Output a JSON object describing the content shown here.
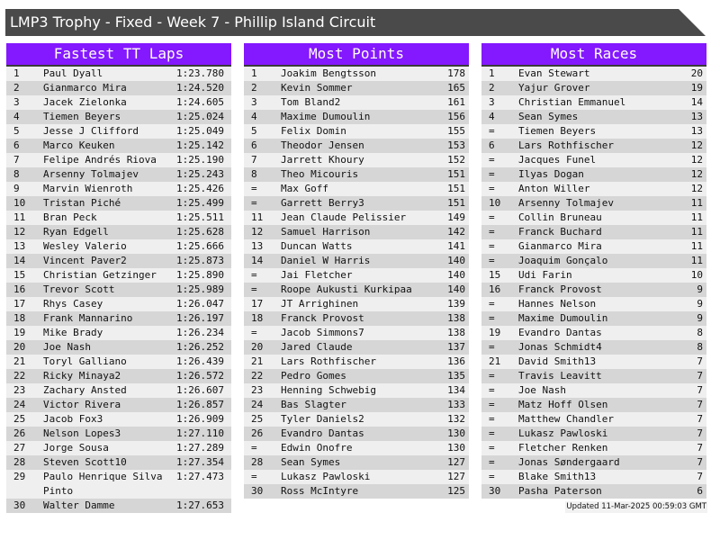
{
  "title": "LMP3 Trophy - Fixed - Week 7 - Phillip Island Circuit",
  "colors": {
    "header_bg": "#8418ff",
    "title_bg": "#4a4a4a",
    "row_light": "#efefef",
    "row_dark": "#d6d6d6"
  },
  "panels": [
    {
      "title": "Fastest TT Laps",
      "rows": [
        [
          "1",
          "Paul Dyall",
          "1:23.780"
        ],
        [
          "2",
          "Gianmarco Mira",
          "1:24.520"
        ],
        [
          "3",
          "Jacek Zielonka",
          "1:24.605"
        ],
        [
          "4",
          "Tiemen Beyers",
          "1:25.024"
        ],
        [
          "5",
          "Jesse J Clifford",
          "1:25.049"
        ],
        [
          "6",
          "Marco Keuken",
          "1:25.142"
        ],
        [
          "7",
          "Felipe Andrés Riova",
          "1:25.190"
        ],
        [
          "8",
          "Arsenny Tolmajev",
          "1:25.243"
        ],
        [
          "9",
          "Marvin Wienroth",
          "1:25.426"
        ],
        [
          "10",
          "Tristan Piché",
          "1:25.499"
        ],
        [
          "11",
          "Bran Peck",
          "1:25.511"
        ],
        [
          "12",
          "Ryan Edgell",
          "1:25.628"
        ],
        [
          "13",
          "Wesley Valerio",
          "1:25.666"
        ],
        [
          "14",
          "Vincent Paver2",
          "1:25.873"
        ],
        [
          "15",
          "Christian Getzinger",
          "1:25.890"
        ],
        [
          "16",
          "Trevor Scott",
          "1:25.989"
        ],
        [
          "17",
          "Rhys Casey",
          "1:26.047"
        ],
        [
          "18",
          "Frank Mannarino",
          "1:26.197"
        ],
        [
          "19",
          "Mike Brady",
          "1:26.234"
        ],
        [
          "20",
          "Joe Nash",
          "1:26.252"
        ],
        [
          "21",
          "Toryl Galliano",
          "1:26.439"
        ],
        [
          "22",
          "Ricky Minaya2",
          "1:26.572"
        ],
        [
          "23",
          "Zachary Ansted",
          "1:26.607"
        ],
        [
          "24",
          "Victor Rivera",
          "1:26.857"
        ],
        [
          "25",
          "Jacob Fox3",
          "1:26.909"
        ],
        [
          "26",
          "Nelson Lopes3",
          "1:27.110"
        ],
        [
          "27",
          "Jorge Sousa",
          "1:27.289"
        ],
        [
          "28",
          "Steven Scott10",
          "1:27.354"
        ],
        [
          "29",
          "Paulo Henrique Silva Pinto",
          "1:27.473"
        ],
        [
          "30",
          "Walter Damme",
          "1:27.653"
        ]
      ]
    },
    {
      "title": "Most Points",
      "rows": [
        [
          "1",
          "Joakim Bengtsson",
          "178"
        ],
        [
          "2",
          "Kevin Sommer",
          "165"
        ],
        [
          "3",
          "Tom Bland2",
          "161"
        ],
        [
          "4",
          "Maxime Dumoulin",
          "156"
        ],
        [
          "5",
          "Felix Domin",
          "155"
        ],
        [
          "6",
          "Theodor Jensen",
          "153"
        ],
        [
          "7",
          "Jarrett Khoury",
          "152"
        ],
        [
          "8",
          "Theo Micouris",
          "151"
        ],
        [
          "=",
          "Max Goff",
          "151"
        ],
        [
          "=",
          "Garrett Berry3",
          "151"
        ],
        [
          "11",
          "Jean Claude Pelissier",
          "149"
        ],
        [
          "12",
          "Samuel Harrison",
          "142"
        ],
        [
          "13",
          "Duncan Watts",
          "141"
        ],
        [
          "14",
          "Daniel W Harris",
          "140"
        ],
        [
          "=",
          "Jai Fletcher",
          "140"
        ],
        [
          "=",
          "Roope Aukusti Kurkipaa",
          "140"
        ],
        [
          "17",
          "JT Arrighinen",
          "139"
        ],
        [
          "18",
          "Franck Provost",
          "138"
        ],
        [
          "=",
          "Jacob Simmons7",
          "138"
        ],
        [
          "20",
          "Jared Claude",
          "137"
        ],
        [
          "21",
          "Lars Rothfischer",
          "136"
        ],
        [
          "22",
          "Pedro Gomes",
          "135"
        ],
        [
          "23",
          "Henning Schwebig",
          "134"
        ],
        [
          "24",
          "Bas Slagter",
          "133"
        ],
        [
          "25",
          "Tyler Daniels2",
          "132"
        ],
        [
          "26",
          "Evandro Dantas",
          "130"
        ],
        [
          "=",
          "Edwin Onofre",
          "130"
        ],
        [
          "28",
          "Sean Symes",
          "127"
        ],
        [
          "=",
          "Lukasz Pawloski",
          "127"
        ],
        [
          "30",
          "Ross McIntyre",
          "125"
        ]
      ]
    },
    {
      "title": "Most Races",
      "rows": [
        [
          "1",
          "Evan Stewart",
          "20"
        ],
        [
          "2",
          "Yajur Grover",
          "19"
        ],
        [
          "3",
          "Christian Emmanuel",
          "14"
        ],
        [
          "4",
          "Sean Symes",
          "13"
        ],
        [
          "=",
          "Tiemen Beyers",
          "13"
        ],
        [
          "6",
          "Lars Rothfischer",
          "12"
        ],
        [
          "=",
          "Jacques Funel",
          "12"
        ],
        [
          "=",
          "Ilyas Dogan",
          "12"
        ],
        [
          "=",
          "Anton Willer",
          "12"
        ],
        [
          "10",
          "Arsenny Tolmajev",
          "11"
        ],
        [
          "=",
          "Collin Bruneau",
          "11"
        ],
        [
          "=",
          "Franck Buchard",
          "11"
        ],
        [
          "=",
          "Gianmarco Mira",
          "11"
        ],
        [
          "=",
          "Joaquim Gonçalo",
          "11"
        ],
        [
          "15",
          "Udi Farin",
          "10"
        ],
        [
          "16",
          "Franck Provost",
          "9"
        ],
        [
          "=",
          "Hannes Nelson",
          "9"
        ],
        [
          "=",
          "Maxime Dumoulin",
          "9"
        ],
        [
          "19",
          "Evandro Dantas",
          "8"
        ],
        [
          "=",
          "Jonas Schmidt4",
          "8"
        ],
        [
          "21",
          "David Smith13",
          "7"
        ],
        [
          "=",
          "Travis Leavitt",
          "7"
        ],
        [
          "=",
          "Joe Nash",
          "7"
        ],
        [
          "=",
          "Matz Hoff Olsen",
          "7"
        ],
        [
          "=",
          "Matthew Chandler",
          "7"
        ],
        [
          "=",
          "Lukasz Pawloski",
          "7"
        ],
        [
          "=",
          "Fletcher Renken",
          "7"
        ],
        [
          "=",
          "Jonas Søndergaard",
          "7"
        ],
        [
          "=",
          "Blake Smith13",
          "7"
        ],
        [
          "30",
          "Pasha Paterson",
          "6"
        ]
      ]
    }
  ],
  "updated": "Updated 11-Mar-2025 00:59:03 GMT"
}
